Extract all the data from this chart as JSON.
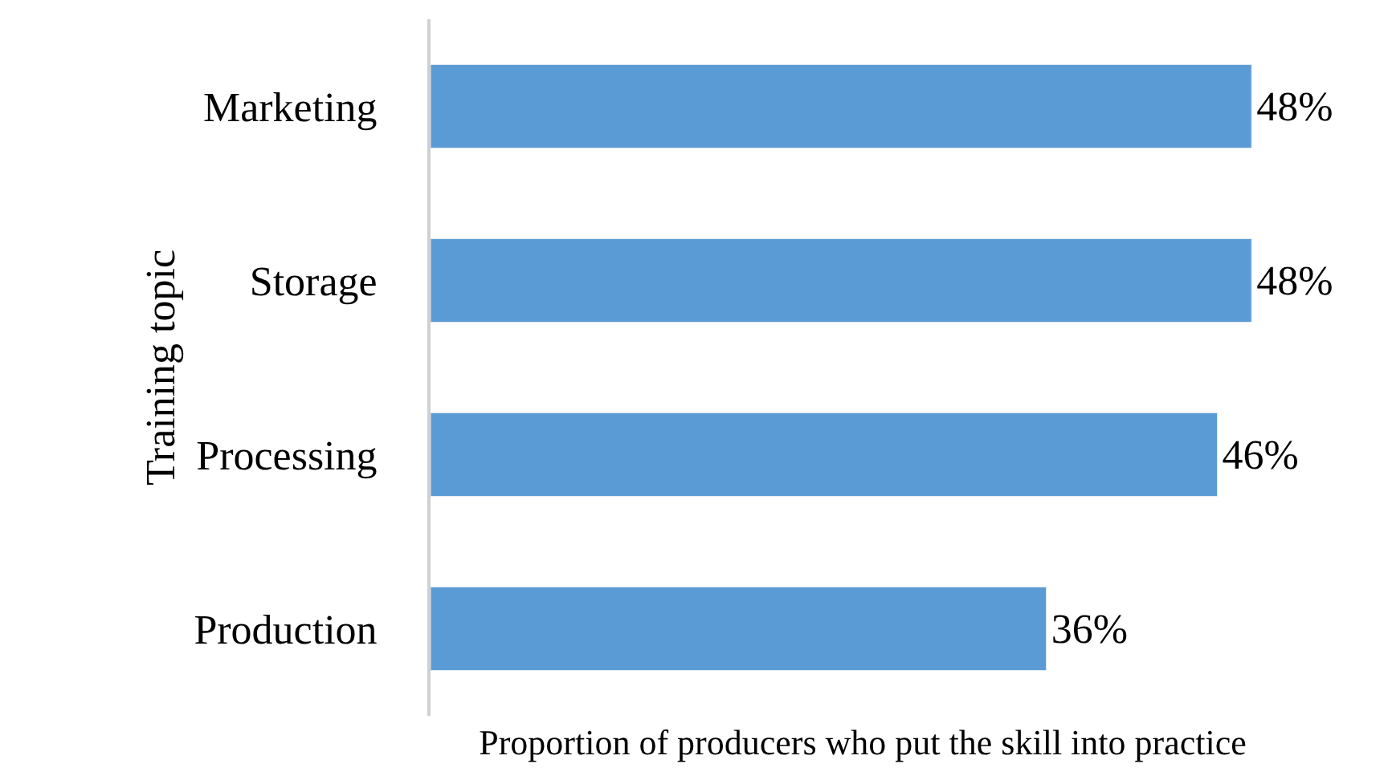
{
  "chart_data": {
    "type": "bar",
    "orientation": "horizontal",
    "xlabel": "Proportion of producers who put the skill into practice",
    "ylabel": "Training topic",
    "categories": [
      "Marketing",
      "Storage",
      "Processing",
      "Production"
    ],
    "values": [
      48,
      48,
      46,
      36
    ],
    "value_labels": [
      "48%",
      "48%",
      "46%",
      "36%"
    ],
    "color": "#5b9bd5",
    "tick_labels": "y"
  }
}
